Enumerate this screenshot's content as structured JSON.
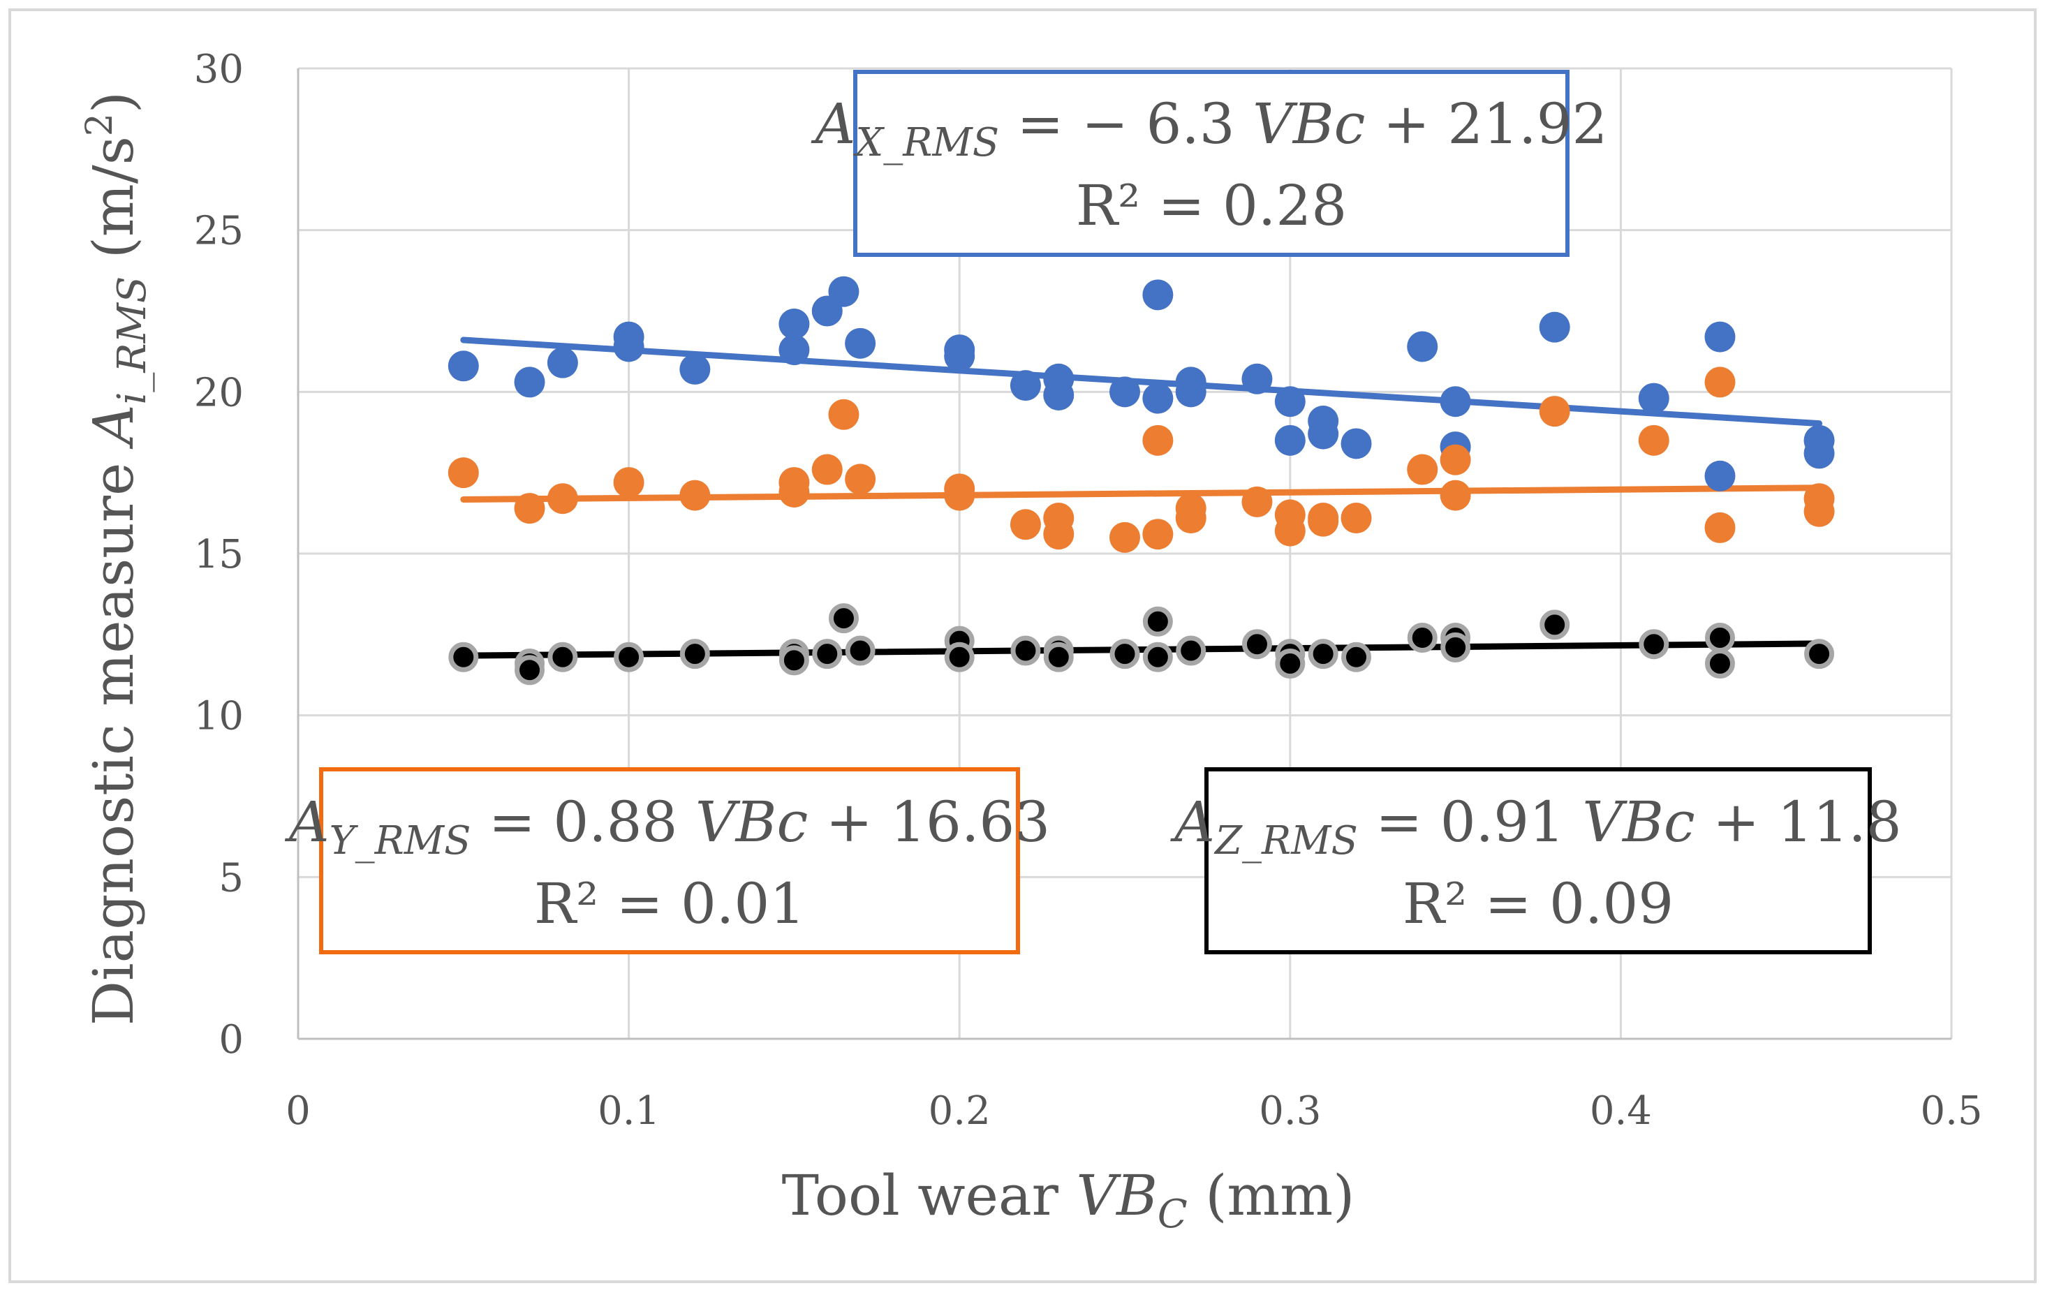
{
  "colors": {
    "x_series": "#4472C4",
    "y_series": "#ED7D31",
    "z_series": "#000000",
    "z_marker_edge": "#A6A6A6",
    "grid": "#D9D9D9",
    "axis": "#BFBFBF",
    "text": "#555555",
    "x_box": "#4472C4",
    "y_box": "#F26B10",
    "z_box": "#000000"
  },
  "chart_data": {
    "type": "scatter",
    "title": "",
    "xlabel": {
      "main": "Tool wear ",
      "var": "VB",
      "sub": "C",
      "unit": " (mm)"
    },
    "ylabel": {
      "main": "Diagnostic measure ",
      "var": "A",
      "sub": "i_RMS",
      "unit_open": " (m/s",
      "unit_sup": "2",
      "unit_close": ")"
    },
    "xlim": [
      0,
      0.5
    ],
    "ylim": [
      0,
      30
    ],
    "x_ticks": [
      "0",
      "0.1",
      "0.2",
      "0.3",
      "0.4",
      "0.5"
    ],
    "x_tick_values": [
      0,
      0.1,
      0.2,
      0.3,
      0.4,
      0.5
    ],
    "y_ticks": [
      "0",
      "5",
      "10",
      "15",
      "20",
      "25",
      "30"
    ],
    "y_tick_values": [
      0,
      5,
      10,
      15,
      20,
      25,
      30
    ],
    "grid": true,
    "series": [
      {
        "name": "X",
        "color": "#4472C4",
        "trend": {
          "slope": -6.3,
          "intercept": 21.92
        },
        "points": [
          [
            0.05,
            20.8
          ],
          [
            0.07,
            20.3
          ],
          [
            0.08,
            20.9
          ],
          [
            0.1,
            21.7
          ],
          [
            0.1,
            21.4
          ],
          [
            0.12,
            20.7
          ],
          [
            0.15,
            22.1
          ],
          [
            0.15,
            21.3
          ],
          [
            0.16,
            22.5
          ],
          [
            0.165,
            23.1
          ],
          [
            0.17,
            21.5
          ],
          [
            0.2,
            21.3
          ],
          [
            0.2,
            21.1
          ],
          [
            0.22,
            20.2
          ],
          [
            0.23,
            20.4
          ],
          [
            0.23,
            19.9
          ],
          [
            0.25,
            20.0
          ],
          [
            0.26,
            23.0
          ],
          [
            0.26,
            19.8
          ],
          [
            0.27,
            20.3
          ],
          [
            0.27,
            20.0
          ],
          [
            0.29,
            20.4
          ],
          [
            0.3,
            19.7
          ],
          [
            0.3,
            18.5
          ],
          [
            0.31,
            19.1
          ],
          [
            0.31,
            18.7
          ],
          [
            0.32,
            18.4
          ],
          [
            0.34,
            21.4
          ],
          [
            0.35,
            19.7
          ],
          [
            0.35,
            18.3
          ],
          [
            0.38,
            22.0
          ],
          [
            0.41,
            19.8
          ],
          [
            0.43,
            21.7
          ],
          [
            0.43,
            17.4
          ],
          [
            0.46,
            18.5
          ],
          [
            0.46,
            18.1
          ]
        ]
      },
      {
        "name": "Y",
        "color": "#ED7D31",
        "trend": {
          "slope": 0.88,
          "intercept": 16.63
        },
        "points": [
          [
            0.05,
            17.5
          ],
          [
            0.07,
            16.4
          ],
          [
            0.08,
            16.7
          ],
          [
            0.1,
            17.2
          ],
          [
            0.12,
            16.8
          ],
          [
            0.15,
            17.2
          ],
          [
            0.15,
            16.9
          ],
          [
            0.16,
            17.6
          ],
          [
            0.165,
            19.3
          ],
          [
            0.17,
            17.3
          ],
          [
            0.2,
            17.0
          ],
          [
            0.2,
            16.8
          ],
          [
            0.22,
            15.9
          ],
          [
            0.23,
            16.1
          ],
          [
            0.23,
            15.6
          ],
          [
            0.25,
            15.5
          ],
          [
            0.26,
            18.5
          ],
          [
            0.26,
            15.6
          ],
          [
            0.27,
            16.4
          ],
          [
            0.27,
            16.1
          ],
          [
            0.29,
            16.6
          ],
          [
            0.3,
            16.2
          ],
          [
            0.3,
            15.7
          ],
          [
            0.31,
            16.1
          ],
          [
            0.31,
            16.0
          ],
          [
            0.32,
            16.1
          ],
          [
            0.34,
            17.6
          ],
          [
            0.35,
            17.9
          ],
          [
            0.35,
            16.8
          ],
          [
            0.38,
            19.4
          ],
          [
            0.41,
            18.5
          ],
          [
            0.43,
            20.3
          ],
          [
            0.43,
            15.8
          ],
          [
            0.46,
            16.7
          ],
          [
            0.46,
            16.3
          ]
        ]
      },
      {
        "name": "Z",
        "color": "#000000",
        "trend": {
          "slope": 0.91,
          "intercept": 11.8
        },
        "points": [
          [
            0.05,
            11.8
          ],
          [
            0.07,
            11.6
          ],
          [
            0.07,
            11.4
          ],
          [
            0.08,
            11.8
          ],
          [
            0.1,
            11.8
          ],
          [
            0.12,
            11.9
          ],
          [
            0.15,
            11.9
          ],
          [
            0.15,
            11.7
          ],
          [
            0.16,
            11.9
          ],
          [
            0.165,
            13.0
          ],
          [
            0.17,
            12.0
          ],
          [
            0.2,
            12.3
          ],
          [
            0.2,
            11.8
          ],
          [
            0.22,
            12.0
          ],
          [
            0.23,
            12.0
          ],
          [
            0.23,
            11.8
          ],
          [
            0.25,
            11.9
          ],
          [
            0.26,
            12.9
          ],
          [
            0.26,
            11.8
          ],
          [
            0.27,
            12.0
          ],
          [
            0.29,
            12.2
          ],
          [
            0.3,
            11.9
          ],
          [
            0.3,
            11.6
          ],
          [
            0.31,
            11.9
          ],
          [
            0.32,
            11.8
          ],
          [
            0.34,
            12.4
          ],
          [
            0.35,
            12.4
          ],
          [
            0.35,
            12.1
          ],
          [
            0.38,
            12.8
          ],
          [
            0.41,
            12.2
          ],
          [
            0.43,
            12.4
          ],
          [
            0.43,
            11.6
          ],
          [
            0.46,
            11.9
          ]
        ]
      }
    ],
    "annotations": {
      "x_eq": {
        "var": "A",
        "sub": "X_RMS",
        "rhs_a": " = − 6.3 ",
        "rhs_var": "VBc",
        "rhs_b": " + 21.92",
        "r2": "R² = 0.28"
      },
      "y_eq": {
        "var": "A",
        "sub": "Y_RMS",
        "rhs_a": " = 0.88 ",
        "rhs_var": "VBc",
        "rhs_b": " + 16.63",
        "r2": "R² = 0.01"
      },
      "z_eq": {
        "var": "A",
        "sub": "Z_RMS",
        "rhs_a": " = 0.91 ",
        "rhs_var": "VBc",
        "rhs_b": " + 11.8",
        "r2": "R² = 0.09"
      }
    }
  }
}
